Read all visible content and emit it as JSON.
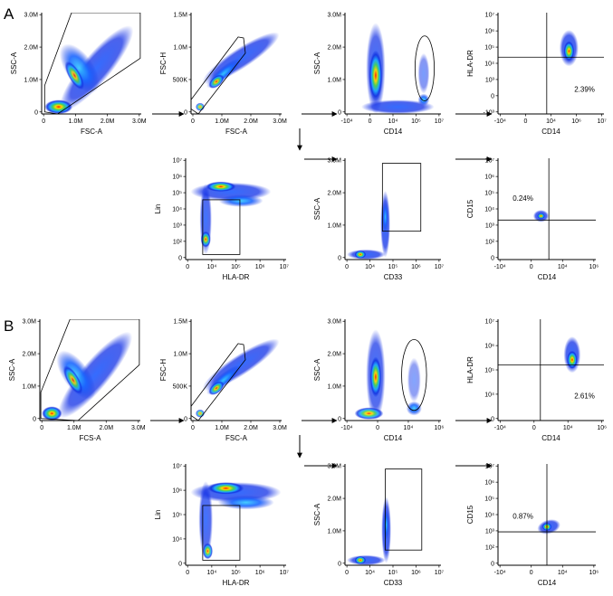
{
  "figure": {
    "sections": [
      {
        "label": "A"
      },
      {
        "label": "B"
      }
    ]
  },
  "chart_data": [
    {
      "id": "A1",
      "type": "scatter",
      "style": "density",
      "xlabel": "FSC-A",
      "ylabel": "SSC-A",
      "xscale": "linear",
      "yscale": "linear",
      "xlim": [
        0,
        3000000
      ],
      "ylim": [
        0,
        3000000
      ],
      "xticks": [
        "0",
        "1.0M",
        "2.0M",
        "3.0M"
      ],
      "yticks": [
        "0",
        "1.0M",
        "2.0M",
        "3.0M"
      ],
      "gate": "polygon (cells)",
      "population_peaks": [
        [
          300000,
          150000
        ],
        [
          800000,
          900000
        ]
      ]
    },
    {
      "id": "A2",
      "type": "scatter",
      "style": "density",
      "xlabel": "FSC-A",
      "ylabel": "FSC-H",
      "xscale": "linear",
      "yscale": "linear",
      "xlim": [
        0,
        3000000
      ],
      "ylim": [
        0,
        1500000
      ],
      "xticks": [
        "0",
        "1.0M",
        "2.0M",
        "3.0M"
      ],
      "yticks": [
        "0",
        "500K",
        "1.0M",
        "1.5M"
      ],
      "gate": "polygon (singlets)"
    },
    {
      "id": "A3",
      "type": "scatter",
      "style": "density",
      "xlabel": "CD14",
      "ylabel": "SSC-A",
      "xscale": "biexponential",
      "yscale": "linear",
      "ylim": [
        0,
        3000000
      ],
      "xticks": [
        "-10⁴",
        "0",
        "10⁴",
        "10⁵",
        "10⁷"
      ],
      "yticks": [
        "0",
        "1.0M",
        "2.0M",
        "3.0M"
      ],
      "gate": "ellipse (CD14+ monocytes)"
    },
    {
      "id": "A4",
      "type": "scatter",
      "style": "density",
      "xlabel": "CD14",
      "ylabel": "HLA-DR",
      "xscale": "biexponential",
      "yscale": "biexponential",
      "xticks": [
        "-10⁴",
        "0",
        "10⁴",
        "10⁶",
        "10⁷"
      ],
      "yticks": [
        "-10³",
        "0",
        "10³",
        "10⁴",
        "10⁵",
        "10⁶",
        "10⁷"
      ],
      "quadrant": {
        "x": 10000,
        "y": 30000
      },
      "annotations": [
        {
          "text": "2.39%",
          "quadrant": "lower-right"
        }
      ]
    },
    {
      "id": "A5",
      "type": "scatter",
      "style": "density",
      "xlabel": "HLA-DR",
      "ylabel": "Lin",
      "xscale": "biexponential",
      "yscale": "biexponential",
      "xticks": [
        "0",
        "10⁴",
        "10⁵",
        "10⁶",
        "10⁷"
      ],
      "yticks": [
        "0",
        "10²",
        "10³",
        "10⁴",
        "10⁵",
        "10⁶",
        "10⁷"
      ],
      "gate": "rectangle (Lin− HLA-DR−)"
    },
    {
      "id": "A6",
      "type": "scatter",
      "style": "density",
      "xlabel": "CD33",
      "ylabel": "SSC-A",
      "xscale": "biexponential",
      "yscale": "linear",
      "ylim": [
        0,
        3000000
      ],
      "xticks": [
        "0",
        "10⁴",
        "10⁵",
        "10⁶",
        "10⁷"
      ],
      "yticks": [
        "0",
        "1.0M",
        "2.0M",
        "3.0M"
      ],
      "gate": "rectangle (CD33+)"
    },
    {
      "id": "A7",
      "type": "scatter",
      "style": "density",
      "xlabel": "CD14",
      "ylabel": "CD15",
      "xscale": "biexponential",
      "yscale": "biexponential",
      "xticks": [
        "-10⁴",
        "0",
        "10⁴",
        "10⁶"
      ],
      "yticks": [
        "0",
        "10²",
        "10³",
        "10⁴",
        "10⁵",
        "10⁶",
        "10⁷"
      ],
      "quadrant": {
        "x": 8000,
        "y": 1500
      },
      "annotations": [
        {
          "text": "0.24%",
          "quadrant": "upper-left"
        }
      ]
    },
    {
      "id": "B1",
      "type": "scatter",
      "style": "density",
      "xlabel": "FCS-A",
      "ylabel": "SSC-A",
      "xscale": "linear",
      "yscale": "linear",
      "xlim": [
        0,
        3000000
      ],
      "ylim": [
        0,
        3000000
      ],
      "xticks": [
        "0",
        "1.0M",
        "2.0M",
        "3.0M"
      ],
      "yticks": [
        "0",
        "1.0M",
        "2.0M",
        "3.0M"
      ],
      "gate": "polygon (cells)"
    },
    {
      "id": "B2",
      "type": "scatter",
      "style": "density",
      "xlabel": "FSC-A",
      "ylabel": "FSC-H",
      "xscale": "linear",
      "yscale": "linear",
      "xlim": [
        0,
        3000000
      ],
      "ylim": [
        0,
        1500000
      ],
      "xticks": [
        "0",
        "1.0M",
        "2.0M",
        "3.0M"
      ],
      "yticks": [
        "0",
        "500K",
        "1.0M",
        "1.5M"
      ],
      "gate": "polygon (singlets)"
    },
    {
      "id": "B3",
      "type": "scatter",
      "style": "density",
      "xlabel": "CD14",
      "ylabel": "SSC-A",
      "xscale": "biexponential",
      "yscale": "linear",
      "ylim": [
        0,
        3000000
      ],
      "xticks": [
        "-10⁴",
        "0",
        "10⁴",
        "10⁶"
      ],
      "yticks": [
        "0",
        "1.0M",
        "2.0M",
        "3.0M"
      ],
      "gate": "ellipse (CD14+ monocytes)"
    },
    {
      "id": "B4",
      "type": "scatter",
      "style": "density",
      "xlabel": "CD14",
      "ylabel": "HLA-DR",
      "xscale": "biexponential",
      "yscale": "biexponential",
      "xticks": [
        "-10⁴",
        "0",
        "10⁴",
        "10⁶"
      ],
      "yticks": [
        "0",
        "10⁴",
        "10⁵",
        "10⁶",
        "10⁷"
      ],
      "quadrant": {
        "x": 10000,
        "y": 30000
      },
      "annotations": [
        {
          "text": "2.61%",
          "quadrant": "lower-right"
        }
      ]
    },
    {
      "id": "B5",
      "type": "scatter",
      "style": "density",
      "xlabel": "HLA-DR",
      "ylabel": "Lin",
      "xscale": "biexponential",
      "yscale": "biexponential",
      "xticks": [
        "0",
        "10⁴",
        "10⁵",
        "10⁶",
        "10⁷"
      ],
      "yticks": [
        "0",
        "10⁴",
        "10⁵",
        "10⁶",
        "10⁷"
      ],
      "gate": "rectangle (Lin− HLA-DR−)"
    },
    {
      "id": "B6",
      "type": "scatter",
      "style": "density",
      "xlabel": "CD33",
      "ylabel": "SSC-A",
      "xscale": "biexponential",
      "yscale": "linear",
      "ylim": [
        0,
        3000000
      ],
      "xticks": [
        "0",
        "10⁴",
        "10⁵",
        "10⁶",
        "10⁷"
      ],
      "yticks": [
        "0",
        "1.0M",
        "2.0M",
        "3.0M"
      ],
      "gate": "rectangle (CD33+)"
    },
    {
      "id": "B7",
      "type": "scatter",
      "style": "density",
      "xlabel": "CD14",
      "ylabel": "CD15",
      "xscale": "biexponential",
      "yscale": "biexponential",
      "xticks": [
        "-10⁴",
        "0",
        "10⁴",
        "10⁶"
      ],
      "yticks": [
        "0",
        "10²",
        "10³",
        "10⁴",
        "10⁵",
        "10⁶",
        "10⁷"
      ],
      "quadrant": {
        "x": 8000,
        "y": 1500
      },
      "annotations": [
        {
          "text": "0.87%",
          "quadrant": "upper-left"
        }
      ]
    }
  ]
}
